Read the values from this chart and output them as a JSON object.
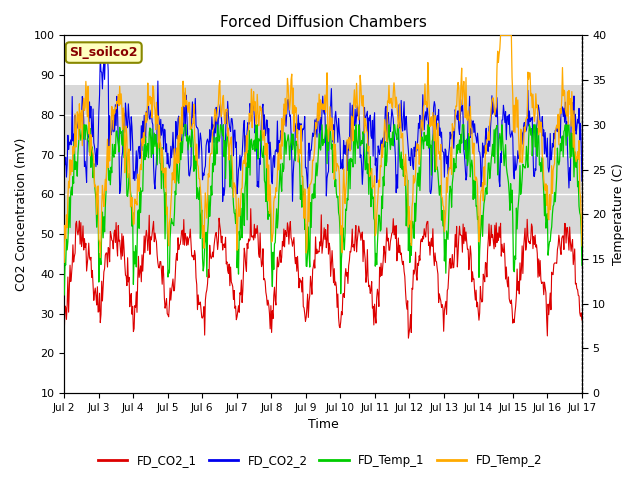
{
  "title": "Forced Diffusion Chambers",
  "xlabel": "Time",
  "ylabel_left": "CO2 Concentration (mV)",
  "ylabel_right": "Temperature (C)",
  "site_label": "SI_soilco2",
  "ylim_left": [
    10,
    100
  ],
  "ylim_right": [
    0,
    40
  ],
  "yticks_left": [
    10,
    20,
    30,
    40,
    50,
    60,
    70,
    80,
    90,
    100
  ],
  "yticks_right": [
    0,
    5,
    10,
    15,
    20,
    25,
    30,
    35,
    40
  ],
  "xtick_labels": [
    "Jul 2",
    "Jul 3",
    "Jul 4",
    "Jul 5",
    "Jul 6",
    "Jul 7",
    "Jul 8",
    "Jul 9",
    "Jul 10",
    "Jul 11",
    "Jul 12",
    "Jul 13",
    "Jul 14",
    "Jul 15",
    "Jul 16",
    "Jul 17"
  ],
  "colors": {
    "FD_CO2_1": "#dd0000",
    "FD_CO2_2": "#0000ee",
    "FD_Temp_1": "#00cc00",
    "FD_Temp_2": "#ffaa00"
  },
  "gray_band_low": 50,
  "gray_band_high": 87.5,
  "gray_band_color": "#d8d8d8",
  "bg_color": "#ffffff",
  "title_fontsize": 11,
  "label_fontsize": 9,
  "tick_fontsize": 8
}
